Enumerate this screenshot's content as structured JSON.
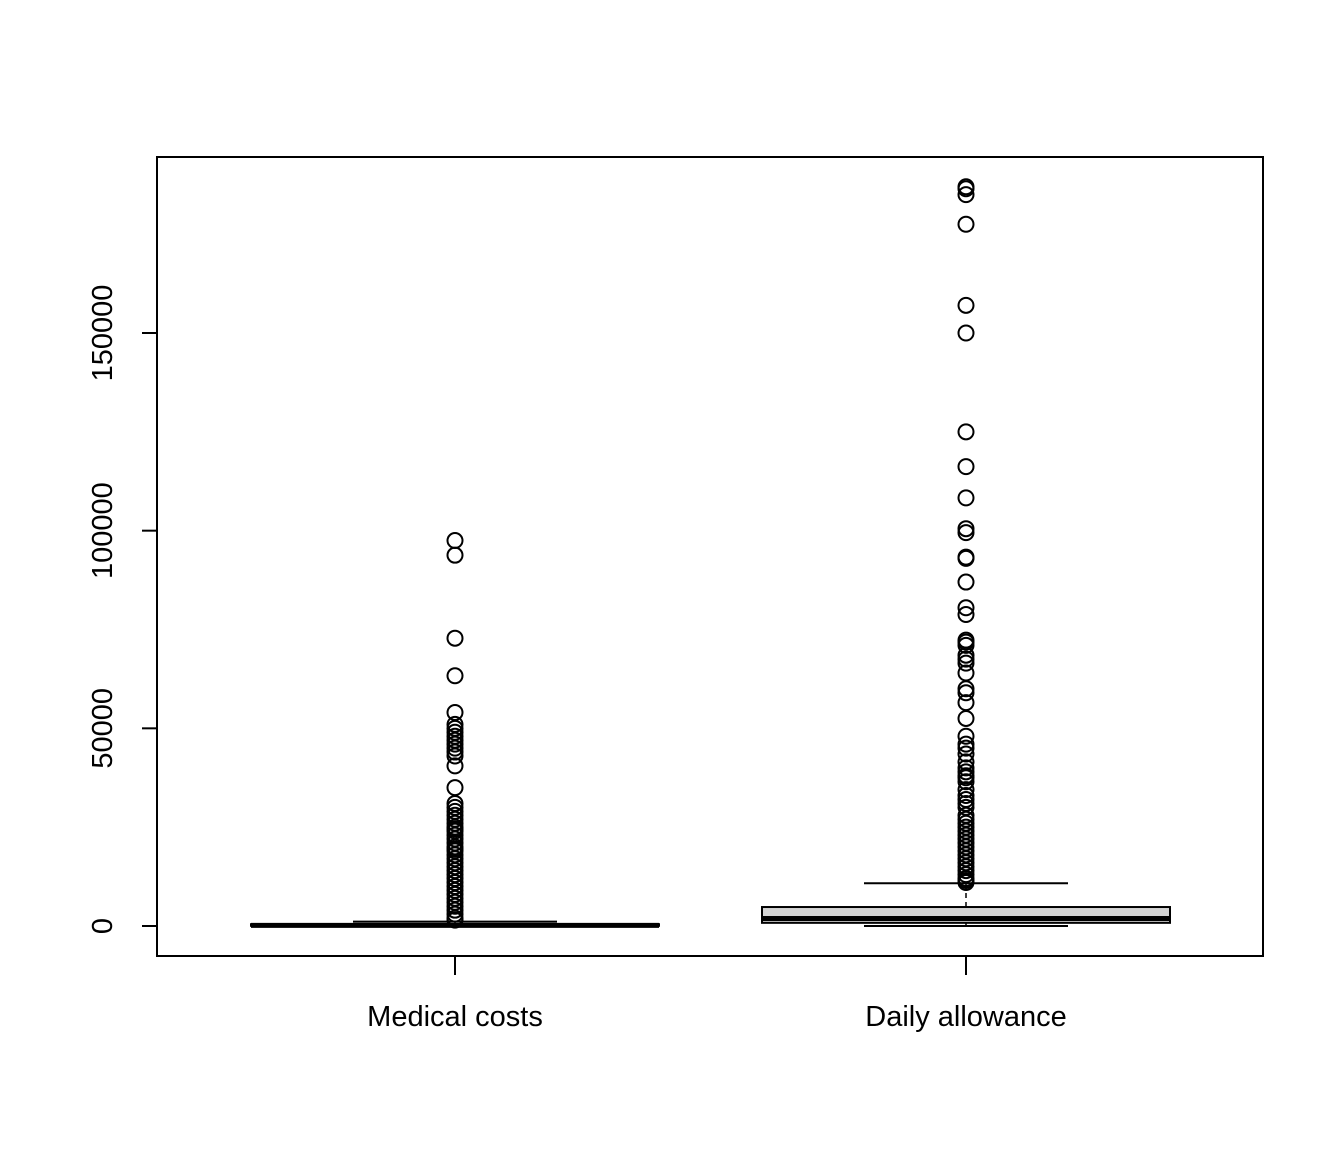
{
  "chart_data": {
    "type": "boxplot",
    "title": "",
    "xlabel": "",
    "ylabel": "",
    "ylim": [
      -7500,
      190000
    ],
    "yticks": [
      0,
      50000,
      100000,
      150000
    ],
    "ytick_labels": [
      "0",
      "50000",
      "100000",
      "150000"
    ],
    "grid": false,
    "categories": [
      "Medical costs",
      "Daily allowance"
    ],
    "boxes": [
      {
        "label": "Medical costs",
        "min": 0,
        "q1": 50,
        "median": 150,
        "q3": 450,
        "max": 1100,
        "outliers": [
          97500,
          93800,
          72800,
          63300,
          54000,
          51000,
          50000,
          49000,
          48000,
          47000,
          46000,
          45000,
          44000,
          43000,
          40500,
          35000,
          31000,
          30000,
          29000,
          28000,
          27000,
          26000,
          25000,
          24500,
          24000,
          23000,
          22000,
          21000,
          20000,
          19500,
          19000,
          18000,
          17000,
          16000,
          15000,
          14000,
          13000,
          12000,
          11000,
          10000,
          9000,
          8000,
          7000,
          6000,
          5000,
          4000,
          3000,
          2000,
          1500
        ]
      },
      {
        "label": "Daily allowance",
        "min": 0,
        "q1": 800,
        "median": 1900,
        "q3": 4800,
        "max": 10800,
        "outliers": [
          187000,
          186500,
          185000,
          177500,
          157000,
          150000,
          125000,
          116200,
          108300,
          100500,
          99500,
          93300,
          93000,
          87000,
          80500,
          78800,
          72300,
          71800,
          71000,
          68500,
          67500,
          66500,
          64000,
          60000,
          59000,
          56500,
          52500,
          48000,
          46000,
          45000,
          43500,
          41500,
          40000,
          39000,
          38000,
          37500,
          36500,
          34500,
          33000,
          32000,
          31000,
          30000,
          28000,
          27000,
          26000,
          25000,
          24000,
          23000,
          22000,
          21000,
          20000,
          19000,
          18000,
          17000,
          16000,
          15000,
          14000,
          13000,
          12000,
          11500,
          11000
        ]
      }
    ]
  }
}
